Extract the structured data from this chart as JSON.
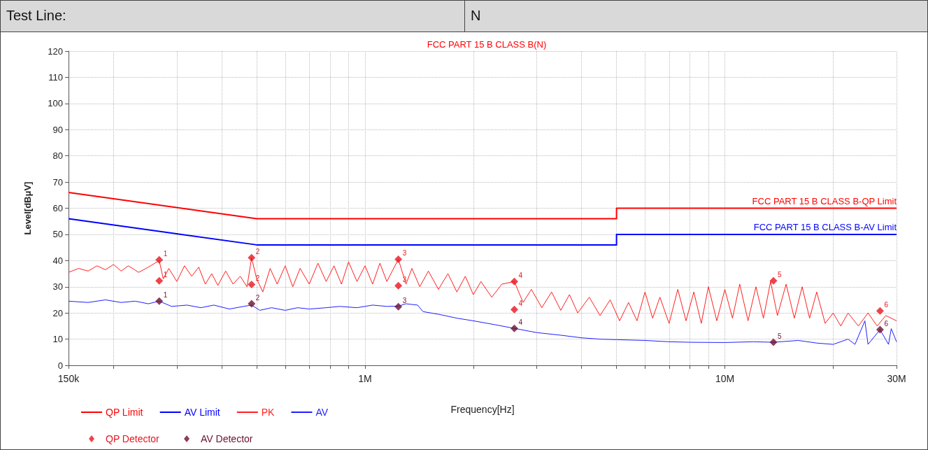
{
  "chart_data": {
    "type": "line",
    "title": "FCC PART 15 B CLASS B(N)",
    "xlabel": "Frequency[Hz]",
    "ylabel": "Level[dBμV]",
    "log": "x",
    "grid": true,
    "legend": "bottom",
    "line_style": "solid",
    "annotations": [
      "Test Line:",
      "N",
      {
        "text": "FCC PART 15 B CLASS B-QP Limit",
        "x": 30000000,
        "y": 60
      },
      {
        "text": "FCC PART 15 B CLASS B-AV Limit",
        "x": 30000000,
        "y": 50
      },
      {
        "text": "1",
        "x": 268000,
        "y": 40.3
      },
      {
        "text": "1",
        "x": 268000,
        "y": 32.3
      },
      {
        "text": "2",
        "x": 484000,
        "y": 41.1
      },
      {
        "text": "2",
        "x": 484000,
        "y": 30.9
      },
      {
        "text": "3",
        "x": 1238000,
        "y": 40.5
      },
      {
        "text": "3",
        "x": 1238000,
        "y": 30.4
      },
      {
        "text": "4",
        "x": 2600000,
        "y": 32
      },
      {
        "text": "4",
        "x": 2600000,
        "y": 21.3
      },
      {
        "text": "5",
        "x": 13650000,
        "y": 32.3
      },
      {
        "text": "6",
        "x": 27000000,
        "y": 20.8
      },
      {
        "text": "1",
        "x": 268000,
        "y": 24.5
      },
      {
        "text": "2",
        "x": 484000,
        "y": 23.5
      },
      {
        "text": "3",
        "x": 1238000,
        "y": 22.4
      },
      {
        "text": "4",
        "x": 2600000,
        "y": 14.1
      },
      {
        "text": "5",
        "x": 13650000,
        "y": 8.8
      },
      {
        "text": "6",
        "x": 27000000,
        "y": 13.6
      }
    ],
    "xlim": [
      150000,
      30000000
    ],
    "xticks": [
      {
        "value": 150000,
        "label": "150k"
      },
      {
        "value": 200000,
        "label": null
      },
      {
        "value": 300000,
        "label": null
      },
      {
        "value": 400000,
        "label": null
      },
      {
        "value": 500000,
        "label": null
      },
      {
        "value": 600000,
        "label": null
      },
      {
        "value": 700000,
        "label": null
      },
      {
        "value": 800000,
        "label": null
      },
      {
        "value": 900000,
        "label": null
      },
      {
        "value": 1000000,
        "label": "1M"
      },
      {
        "value": 2000000,
        "label": null
      },
      {
        "value": 3000000,
        "label": null
      },
      {
        "value": 4000000,
        "label": null
      },
      {
        "value": 5000000,
        "label": null
      },
      {
        "value": 6000000,
        "label": null
      },
      {
        "value": 7000000,
        "label": null
      },
      {
        "value": 8000000,
        "label": null
      },
      {
        "value": 9000000,
        "label": null
      },
      {
        "value": 10000000,
        "label": "10M"
      },
      {
        "value": 20000000,
        "label": null
      },
      {
        "value": 30000000,
        "label": "30M"
      }
    ],
    "ylim": [
      0,
      120
    ],
    "yticks": [
      0,
      10,
      20,
      30,
      40,
      50,
      60,
      70,
      80,
      90,
      100,
      110,
      120
    ],
    "series": [
      {
        "name": "QP Limit",
        "color": "#ff0000",
        "x": [
          150000,
          500000,
          5000000,
          5000000,
          30000000
        ],
        "values": [
          66,
          56,
          56,
          60,
          60
        ]
      },
      {
        "name": "AV Limit",
        "color": "#0000ff",
        "x": [
          150000,
          500000,
          5000000,
          5000000,
          30000000
        ],
        "values": [
          56,
          46,
          46,
          50,
          50
        ]
      },
      {
        "name": "PK",
        "color": "#ff2020",
        "x": [
          150000,
          160000,
          170000,
          180000,
          190000,
          200000,
          210000,
          220000,
          235000,
          250000,
          268000,
          275000,
          285000,
          300000,
          315000,
          330000,
          345000,
          360000,
          375000,
          390000,
          410000,
          430000,
          450000,
          470000,
          484000,
          500000,
          520000,
          545000,
          570000,
          600000,
          630000,
          660000,
          700000,
          740000,
          780000,
          820000,
          860000,
          900000,
          950000,
          1000000,
          1050000,
          1100000,
          1150000,
          1238000,
          1300000,
          1350000,
          1420000,
          1500000,
          1600000,
          1700000,
          1800000,
          1900000,
          2000000,
          2100000,
          2250000,
          2400000,
          2600000,
          2750000,
          2900000,
          3100000,
          3300000,
          3500000,
          3700000,
          3900000,
          4200000,
          4500000,
          4800000,
          5100000,
          5400000,
          5700000,
          6000000,
          6300000,
          6600000,
          7000000,
          7400000,
          7800000,
          8200000,
          8600000,
          9000000,
          9500000,
          10000000,
          10500000,
          11000000,
          11600000,
          12200000,
          12800000,
          13400000,
          14000000,
          14800000,
          15600000,
          16400000,
          17200000,
          18000000,
          19000000,
          20000000,
          21000000,
          22000000,
          23500000,
          25000000,
          26500000,
          28000000,
          30000000
        ],
        "values": [
          35.5,
          37,
          36,
          38,
          36.5,
          38.5,
          36,
          38,
          35.5,
          37.5,
          40,
          33,
          37,
          32,
          38,
          34,
          37.5,
          31,
          35,
          30.5,
          36,
          31,
          34,
          30,
          41,
          33,
          28,
          37,
          31,
          38,
          30,
          37,
          31,
          39,
          32,
          38,
          31,
          39.5,
          32,
          38,
          31,
          39,
          32,
          40.5,
          31,
          37,
          30,
          36,
          29,
          35,
          28,
          34,
          27,
          32,
          26,
          31,
          32,
          24,
          29,
          22,
          28,
          21,
          27,
          20,
          26,
          19,
          25,
          17,
          24,
          17,
          28,
          18,
          26,
          16,
          29,
          17,
          28,
          16,
          30,
          17,
          29,
          18,
          31,
          17,
          30,
          18,
          32,
          19,
          31,
          18,
          30,
          18,
          28,
          16,
          20,
          15,
          20,
          15,
          20,
          15,
          19,
          17
        ]
      },
      {
        "name": "AV",
        "color": "#1f1fff",
        "x": [
          150000,
          170000,
          190000,
          210000,
          230000,
          250000,
          268000,
          290000,
          320000,
          350000,
          380000,
          420000,
          460000,
          484000,
          510000,
          550000,
          600000,
          650000,
          700000,
          780000,
          850000,
          950000,
          1050000,
          1150000,
          1238000,
          1300000,
          1400000,
          1450000,
          1600000,
          1800000,
          2000000,
          2300000,
          2600000,
          3000000,
          3500000,
          4000000,
          4500000,
          5000000,
          6000000,
          7000000,
          8000000,
          10000000,
          12000000,
          13650000,
          16000000,
          18000000,
          20000000,
          22000000,
          23000000,
          24500000,
          25000000,
          27000000,
          28500000,
          29000000,
          30000000
        ],
        "values": [
          24.5,
          24,
          25,
          24,
          24.5,
          23.5,
          24.5,
          22.5,
          23,
          22,
          23,
          21.5,
          22.5,
          23,
          21,
          22,
          21,
          22,
          21.5,
          22,
          22.5,
          22,
          23,
          22.5,
          22.6,
          23.5,
          23,
          20.5,
          19.5,
          18,
          17,
          15.5,
          14.1,
          12.5,
          11.5,
          10.5,
          10,
          9.8,
          9.5,
          9,
          8.8,
          8.7,
          9,
          8.8,
          9.5,
          8.5,
          8,
          10,
          8,
          17,
          8,
          13.6,
          8,
          14,
          9
        ]
      },
      {
        "name": "QP Detector",
        "color": "#e8141e",
        "type": "scatter",
        "marker": "diamond",
        "x": [
          268000,
          268000,
          484000,
          484000,
          1238000,
          1238000,
          2600000,
          2600000,
          13650000,
          27000000
        ],
        "values": [
          40.3,
          32.3,
          41.1,
          30.9,
          40.5,
          30.4,
          32,
          21.3,
          32.3,
          20.8
        ]
      },
      {
        "name": "AV Detector",
        "color": "#6b0f2f",
        "type": "scatter",
        "marker": "diamond",
        "x": [
          268000,
          484000,
          1238000,
          2600000,
          13650000,
          27000000
        ],
        "values": [
          24.5,
          23.5,
          22.4,
          14.1,
          8.8,
          13.6
        ]
      }
    ]
  }
}
